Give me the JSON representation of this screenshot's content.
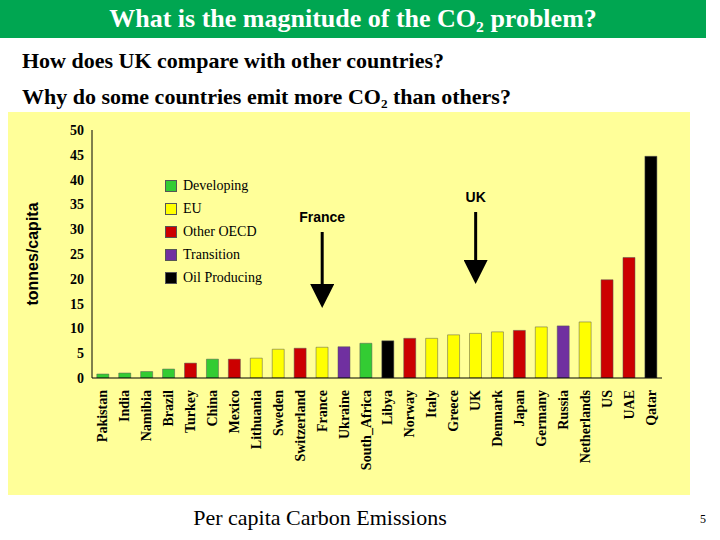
{
  "chart_data": {
    "type": "bar",
    "title": "What is the magnitude of the CO₂ problem?",
    "subtitle": [
      "How does UK compare with other countries?",
      "Why do some countries emit more CO₂ than others?"
    ],
    "ylabel": "tonnes/capita",
    "xlabel": "Per capita Carbon Emissions",
    "page_number": "5",
    "categories": [
      "Pakistan",
      "India",
      "Namibia",
      "Brazil",
      "Turkey",
      "China",
      "Mexico",
      "Lithuania",
      "Sweden",
      "Switzerland",
      "France",
      "Ukraine",
      "South_Africa",
      "Libya",
      "Norway",
      "Italy",
      "Greece",
      "UK",
      "Denmark",
      "Japan",
      "Germany",
      "Russia",
      "Netherlands",
      "US",
      "UAE",
      "Qatar"
    ],
    "series": [
      {
        "name": "Developing",
        "color": "#33cc33",
        "values": [
          0.8,
          1.0,
          1.3,
          1.8,
          null,
          3.8,
          null,
          null,
          null,
          null,
          null,
          null,
          7.0,
          null,
          null,
          null,
          null,
          null,
          null,
          null,
          null,
          null,
          null,
          null,
          null,
          null
        ]
      },
      {
        "name": "EU",
        "color": "#ffff00",
        "values": [
          null,
          null,
          null,
          null,
          null,
          null,
          null,
          4.0,
          5.8,
          null,
          6.2,
          null,
          null,
          null,
          null,
          8.0,
          8.7,
          9.0,
          9.3,
          null,
          10.3,
          null,
          11.3,
          null,
          null,
          null
        ]
      },
      {
        "name": "Other OECD",
        "color": "#cc0000",
        "values": [
          null,
          null,
          null,
          null,
          3.0,
          null,
          3.8,
          null,
          null,
          6.0,
          null,
          null,
          null,
          null,
          8.0,
          null,
          null,
          null,
          null,
          9.6,
          null,
          null,
          null,
          19.8,
          24.3,
          null
        ]
      },
      {
        "name": "Transition",
        "color": "#7030a0",
        "values": [
          null,
          null,
          null,
          null,
          null,
          null,
          null,
          null,
          null,
          null,
          null,
          6.3,
          null,
          null,
          null,
          null,
          null,
          null,
          null,
          null,
          null,
          10.5,
          null,
          null,
          null,
          null
        ]
      },
      {
        "name": "Oil Producing",
        "color": "#000000",
        "values": [
          null,
          null,
          null,
          null,
          null,
          null,
          null,
          null,
          null,
          null,
          null,
          null,
          null,
          7.5,
          null,
          null,
          null,
          null,
          null,
          null,
          null,
          null,
          null,
          null,
          null,
          44.7
        ]
      }
    ],
    "ylim": [
      0,
      50
    ],
    "yticks": [
      0,
      5,
      10,
      15,
      20,
      25,
      30,
      35,
      40,
      45,
      50
    ],
    "stacked": true,
    "grid": false,
    "legend": "upper left",
    "annotations": [
      {
        "text": "France",
        "category": "France"
      },
      {
        "text": "UK",
        "category": "UK"
      }
    ]
  }
}
